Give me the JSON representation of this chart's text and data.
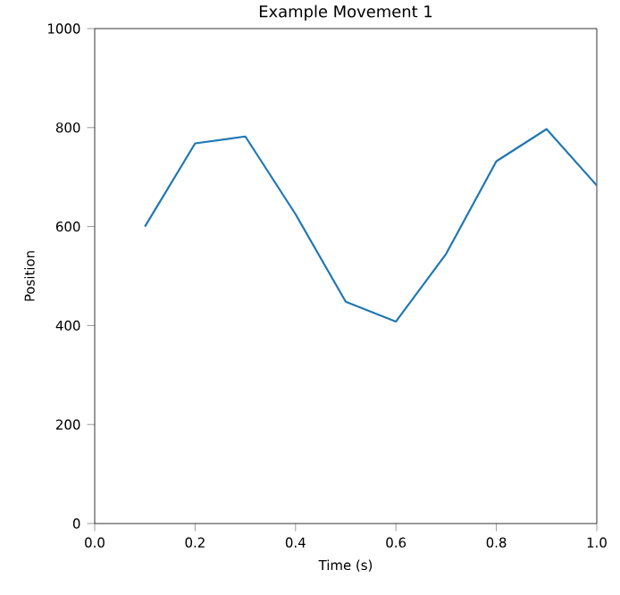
{
  "chart_data": {
    "type": "line",
    "title": "Example Movement 1",
    "xlabel": "Time (s)",
    "ylabel": "Position",
    "x": [
      0.1,
      0.2,
      0.3,
      0.4,
      0.5,
      0.6,
      0.7,
      0.8,
      0.9,
      1.0
    ],
    "values": [
      600,
      768,
      782,
      625,
      448,
      408,
      545,
      732,
      797,
      683
    ],
    "color": "#1f77b4",
    "xlim": [
      0,
      1
    ],
    "ylim": [
      0,
      1000
    ],
    "xticks": [
      {
        "value": 0,
        "label": "0.0"
      },
      {
        "value": 0.2,
        "label": "0.2"
      },
      {
        "value": 0.4,
        "label": "0.4"
      },
      {
        "value": 0.6,
        "label": "0.6"
      },
      {
        "value": 0.8,
        "label": "0.8"
      },
      {
        "value": 1.0,
        "label": "1.0"
      }
    ],
    "yticks": [
      0,
      200,
      400,
      600,
      800,
      1000
    ],
    "grid": false,
    "marker": "none",
    "line_style": "solid"
  }
}
